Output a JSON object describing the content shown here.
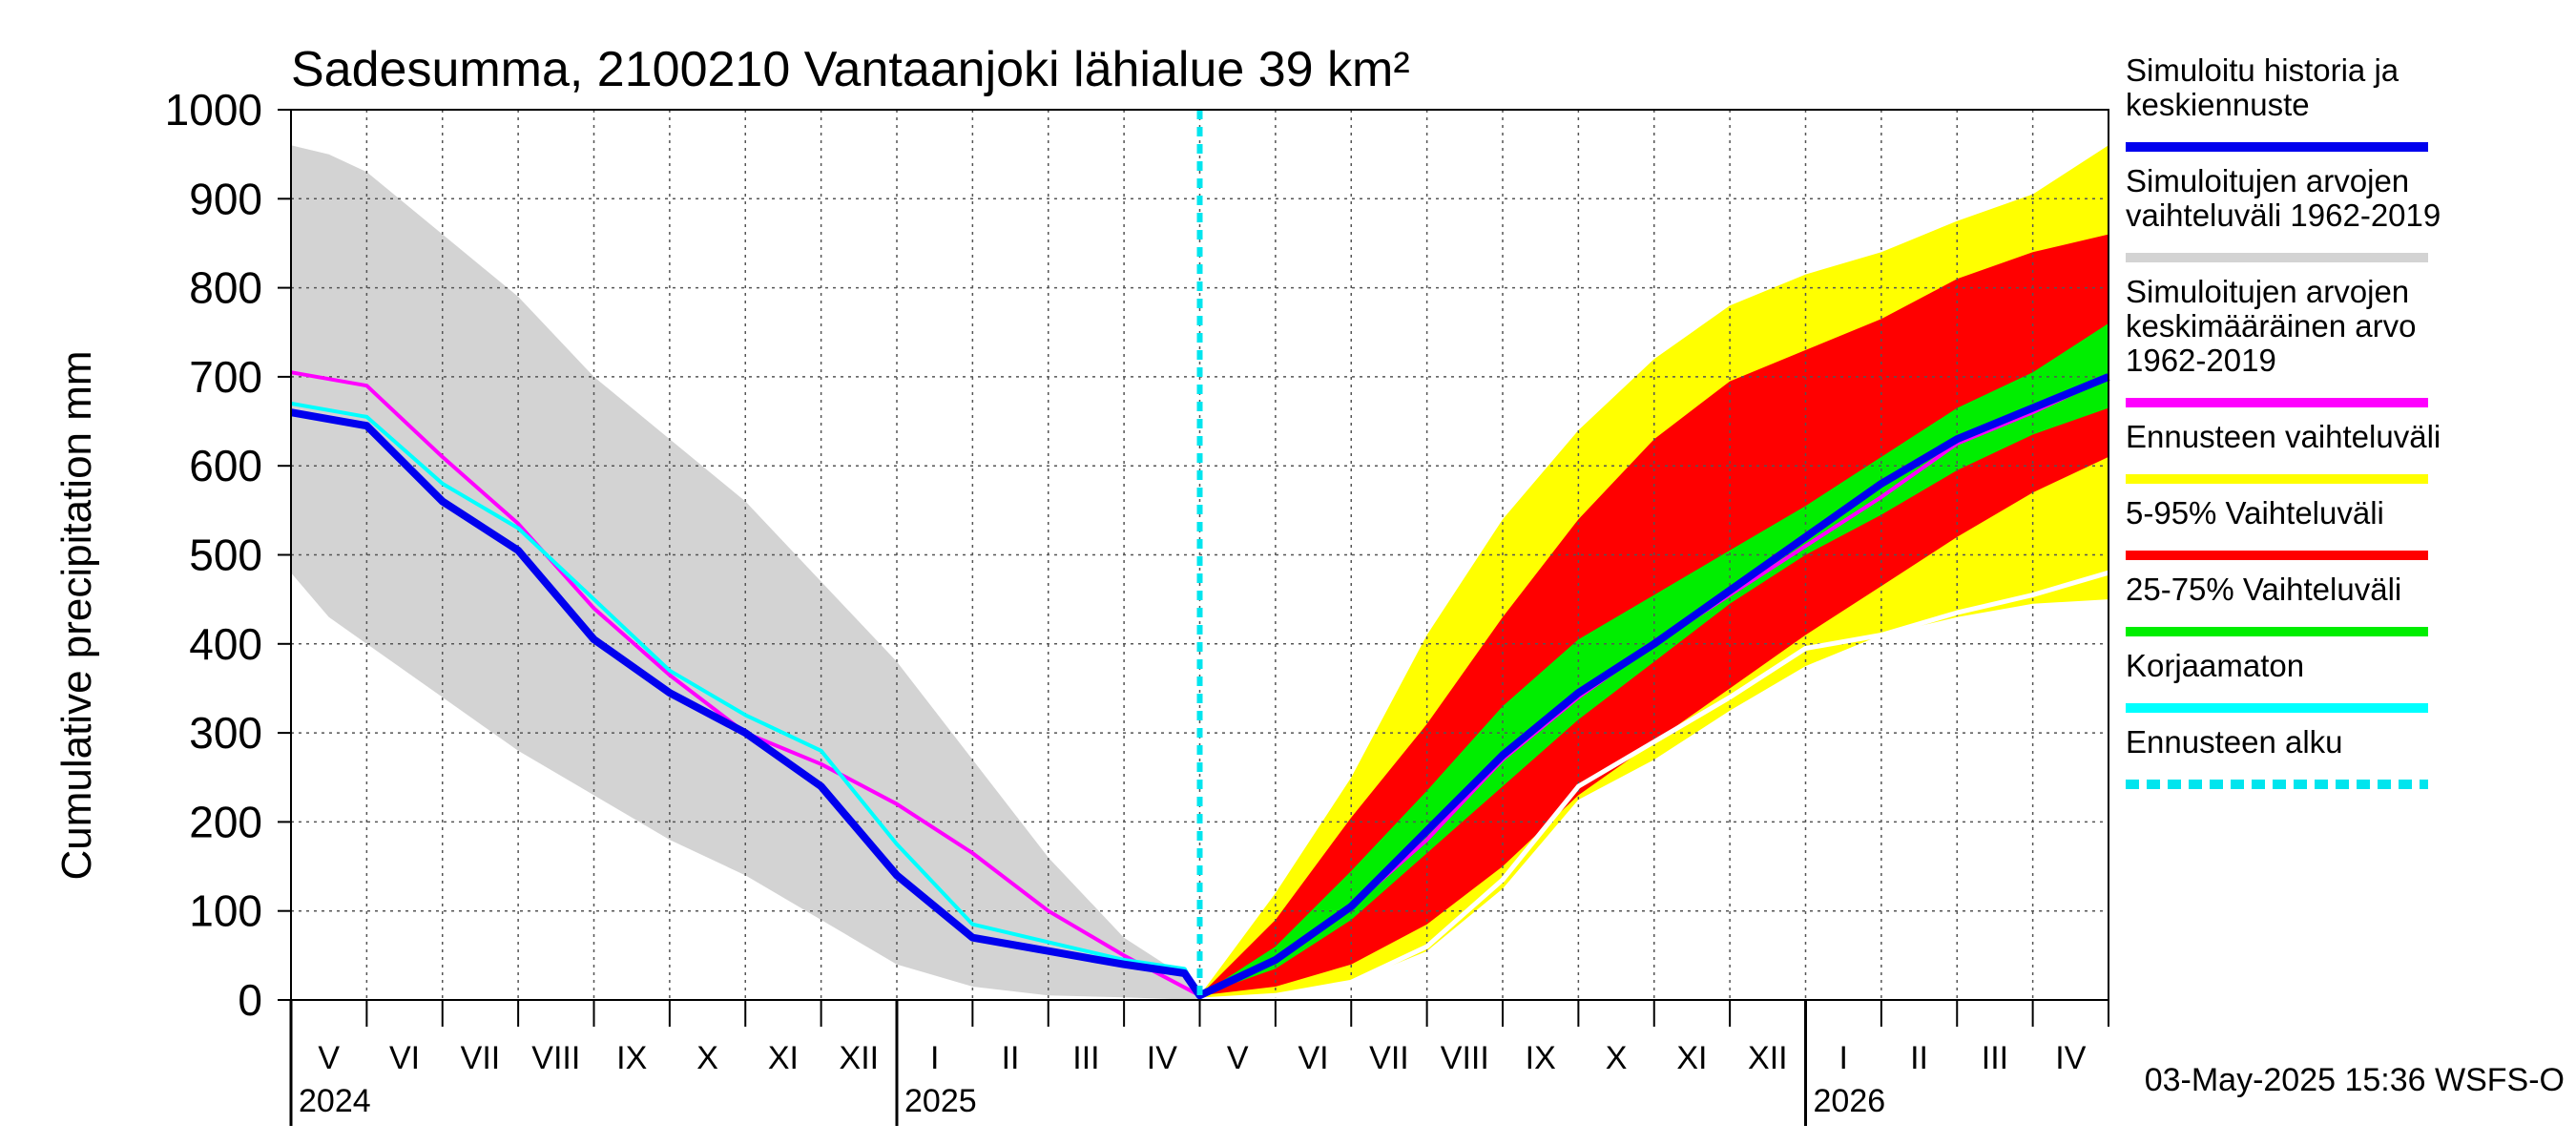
{
  "chart_data": {
    "type": "area",
    "title": "Sadesumma, 2100210 Vantaanjoki lähialue 39 km²",
    "ylabel": "Cumulative precipitation   mm",
    "xlabel": "",
    "ylim": [
      0,
      1000
    ],
    "y_ticks": [
      0,
      100,
      200,
      300,
      400,
      500,
      600,
      700,
      800,
      900,
      1000
    ],
    "x_unit": "months since 2024-04-30",
    "xlim": [
      0,
      24
    ],
    "forecast_start": 12,
    "month_labels": [
      "V",
      "VI",
      "VII",
      "VIII",
      "IX",
      "X",
      "XI",
      "XII",
      "I",
      "II",
      "III",
      "IV",
      "V",
      "VI",
      "VII",
      "VIII",
      "IX",
      "X",
      "XI",
      "XII",
      "I",
      "II",
      "III",
      "IV"
    ],
    "year_labels": [
      {
        "label": "2024",
        "x": 0
      },
      {
        "label": "2025",
        "x": 8
      },
      {
        "label": "2026",
        "x": 20
      }
    ],
    "legend": [
      {
        "label": "Simuloitu historia ja keskiennuste",
        "color": "#0000ee",
        "style": "solid"
      },
      {
        "label": "Simuloitujen arvojen vaihteluväli 1962-2019",
        "color": "#d3d3d3",
        "style": "solid"
      },
      {
        "label": "Simuloitujen arvojen keskimääräinen arvo   1962-2019",
        "color": "#ff00ff",
        "style": "solid"
      },
      {
        "label": "Ennusteen vaihteluväli",
        "color": "#ffff00",
        "style": "solid"
      },
      {
        "label": "5-95% Vaihteluväli",
        "color": "#ff0000",
        "style": "solid"
      },
      {
        "label": "25-75% Vaihteluväli",
        "color": "#00ee00",
        "style": "solid"
      },
      {
        "label": "Korjaamaton",
        "color": "#00ffff",
        "style": "solid"
      },
      {
        "label": "Ennusteen alku",
        "color": "#00e5ee",
        "style": "dashed"
      }
    ],
    "legend_lines": [
      [
        "Simuloitu historia ja",
        "keskiennuste"
      ],
      [
        "Simuloitujen arvojen",
        "vaihteluväli 1962-2019"
      ],
      [
        "Simuloitujen arvojen",
        "keskimääräinen arvo",
        "   1962-2019"
      ],
      [
        "Ennusteen vaihteluväli"
      ],
      [
        "5-95% Vaihteluväli"
      ],
      [
        "25-75% Vaihteluväli"
      ],
      [
        "Korjaamaton"
      ],
      [
        "Ennusteen alku"
      ]
    ],
    "series": [
      {
        "name": "Simuloitujen arvojen vaihteluväli 1962-2019 (upper)",
        "x": [
          0,
          0.5,
          1,
          2,
          3,
          4,
          5,
          6,
          7,
          8,
          9,
          10,
          11,
          12
        ],
        "values": [
          960,
          950,
          930,
          860,
          790,
          700,
          630,
          560,
          470,
          380,
          270,
          160,
          70,
          15
        ]
      },
      {
        "name": "Simuloitujen arvojen vaihteluväli 1962-2019 (lower)",
        "x": [
          0,
          0.5,
          1,
          2,
          3,
          4,
          5,
          6,
          7,
          8,
          9,
          10,
          11,
          12
        ],
        "values": [
          480,
          430,
          400,
          340,
          280,
          230,
          180,
          140,
          90,
          40,
          15,
          5,
          3,
          0
        ]
      },
      {
        "name": "Simuloitu historia ja keskiennuste",
        "x": [
          0,
          1,
          2,
          3,
          4,
          5,
          6,
          7,
          8,
          9,
          10,
          11,
          11.8,
          12,
          13,
          14,
          15,
          16,
          17,
          18,
          19,
          20,
          21,
          22,
          23,
          24
        ],
        "values": [
          660,
          645,
          560,
          505,
          405,
          345,
          300,
          240,
          140,
          70,
          55,
          40,
          30,
          5,
          45,
          105,
          190,
          275,
          345,
          400,
          460,
          520,
          580,
          630,
          665,
          700
        ]
      },
      {
        "name": "Simuloitujen arvojen keskimääräinen arvo 1962-2019",
        "x": [
          0,
          1,
          2,
          3,
          4,
          5,
          6,
          7,
          8,
          9,
          10,
          11,
          12,
          13,
          14,
          15,
          16,
          17,
          18,
          19,
          20,
          21,
          22,
          23,
          24
        ],
        "values": [
          705,
          690,
          610,
          535,
          440,
          365,
          300,
          265,
          220,
          165,
          100,
          50,
          5,
          45,
          105,
          180,
          270,
          340,
          400,
          455,
          510,
          565,
          625,
          660,
          700
        ]
      },
      {
        "name": "Korjaamaton",
        "x": [
          0,
          1,
          2,
          3,
          4,
          5,
          6,
          7,
          8,
          9,
          10,
          11,
          11.8,
          12
        ],
        "values": [
          670,
          655,
          580,
          530,
          450,
          370,
          320,
          280,
          175,
          85,
          65,
          45,
          35,
          5
        ]
      },
      {
        "name": "Ennusteen vaihteluväli (upper)",
        "x": [
          12,
          13,
          14,
          15,
          16,
          17,
          18,
          19,
          20,
          21,
          22,
          23,
          24
        ],
        "values": [
          5,
          120,
          250,
          410,
          540,
          640,
          720,
          780,
          815,
          840,
          875,
          905,
          960
        ]
      },
      {
        "name": "5-95% Vaihteluväli (upper)",
        "x": [
          12,
          13,
          14,
          15,
          16,
          17,
          18,
          19,
          20,
          21,
          22,
          23,
          24
        ],
        "values": [
          5,
          90,
          205,
          310,
          430,
          540,
          630,
          695,
          730,
          765,
          810,
          840,
          860
        ]
      },
      {
        "name": "25-75% Vaihteluväli (upper)",
        "x": [
          12,
          13,
          14,
          15,
          16,
          17,
          18,
          19,
          20,
          21,
          22,
          23,
          24
        ],
        "values": [
          5,
          60,
          145,
          235,
          330,
          405,
          455,
          505,
          555,
          610,
          665,
          705,
          760
        ]
      },
      {
        "name": "25-75% Vaihteluväli (lower)",
        "x": [
          12,
          13,
          14,
          15,
          16,
          17,
          18,
          19,
          20,
          21,
          22,
          23,
          24
        ],
        "values": [
          5,
          35,
          90,
          165,
          240,
          315,
          380,
          445,
          500,
          545,
          595,
          635,
          665
        ]
      },
      {
        "name": "5-95% Vaihteluväli (lower)",
        "x": [
          12,
          13,
          14,
          15,
          16,
          17,
          18,
          19,
          20,
          21,
          22,
          23,
          24
        ],
        "values": [
          5,
          15,
          40,
          85,
          150,
          230,
          290,
          350,
          410,
          465,
          520,
          570,
          610
        ]
      },
      {
        "name": "Ennusteen vaihteluväli (lower)",
        "x": [
          12,
          13,
          14,
          15,
          16,
          17,
          18,
          19,
          20,
          21,
          22,
          23,
          24
        ],
        "values": [
          0,
          5,
          20,
          55,
          125,
          225,
          270,
          325,
          375,
          410,
          430,
          445,
          450
        ]
      },
      {
        "name": "Lowest scenario (white)",
        "x": [
          12,
          13,
          14,
          15,
          16,
          17,
          18,
          19,
          20,
          21,
          22,
          23,
          24
        ],
        "values": [
          0,
          5,
          20,
          60,
          135,
          240,
          290,
          340,
          395,
          410,
          435,
          455,
          480
        ]
      }
    ],
    "footer": "03-May-2025 15:36 WSFS-O"
  },
  "colors": {
    "history_band": "#d3d3d3",
    "forecast_range": "#ffff00",
    "p5_95": "#ff0000",
    "p25_75": "#00ee00",
    "mean_history": "#ff00ff",
    "simulated": "#0000ee",
    "uncorrected": "#00ffff",
    "forecast_start": "#00e5ee",
    "lowest": "#ffffff"
  }
}
